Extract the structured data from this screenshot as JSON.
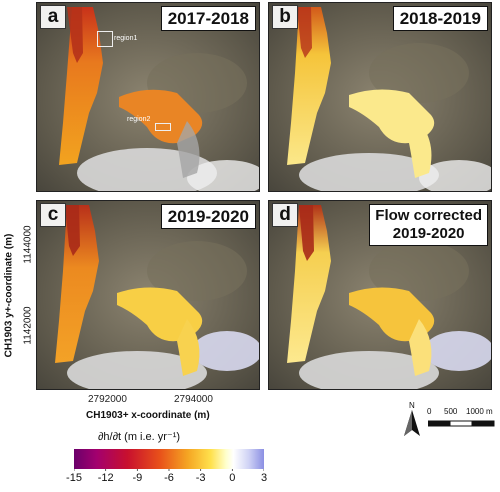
{
  "panels": [
    {
      "letter": "a",
      "title": "2017-2018",
      "variant": "strong"
    },
    {
      "letter": "b",
      "title": "2018-2019",
      "variant": "pale"
    },
    {
      "letter": "c",
      "title": "2019-2020",
      "variant": "mid"
    },
    {
      "letter": "d",
      "title_line1": "Flow corrected",
      "title_line2": "2019-2020",
      "variant": "pale2"
    }
  ],
  "regions": {
    "region1": "region1",
    "region2": "region2"
  },
  "axes": {
    "xlabel": "CH1903+ x-coordinate (m)",
    "ylabel": "CH1903 y+-coordinate (m)",
    "xticks": [
      "2792000",
      "2794000"
    ],
    "yticks": [
      "1144000",
      "1142000"
    ]
  },
  "colorbar": {
    "title": "∂h/∂t (m i.e. yr⁻¹)",
    "ticks": [
      "-15",
      "-12",
      "-9",
      "-6",
      "-3",
      "0",
      "3"
    ],
    "colors": [
      "#6b006b",
      "#a3006e",
      "#c8102e",
      "#e8501a",
      "#f5a623",
      "#ffe14d",
      "#ffffcc",
      "#ffffff",
      "#cfd2f5",
      "#8b8fe3"
    ]
  },
  "scalebar": {
    "north": "N",
    "labels": [
      "0",
      "500",
      "1000 m"
    ]
  }
}
